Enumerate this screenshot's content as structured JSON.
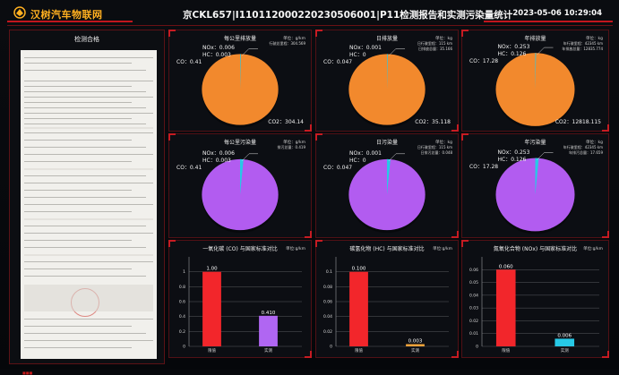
{
  "header": {
    "brand": "汉树汽车物联网",
    "title": "京CKL657|I110112000220230506001|P11检测报告和实测污染量统计",
    "datetime": "2023-05-06 10:29:04"
  },
  "doc_panel": {
    "title": "检测合格"
  },
  "colors": {
    "orange": "#f2892d",
    "purple": "#b25cf0",
    "red": "#f2262b",
    "violet": "#b066f2",
    "cyan": "#27c9e6",
    "frame": "#c71b22",
    "brand": "#ffb020"
  },
  "emission_row": [
    {
      "title": "每公里排放量",
      "unit": "单位：g/km",
      "unit_extra": [
        "行驶总里程：304.569"
      ],
      "labels": {
        "nox": "NOx：0.006",
        "hc": "HC：0.003",
        "co": "CO：0.41",
        "co2": "CO2：304.14"
      }
    },
    {
      "title": "日排放量",
      "unit": "单位：kg",
      "unit_extra": [
        "日行驶里程：115 km",
        "日排放总量：35.166"
      ],
      "labels": {
        "nox": "NOx：0.001",
        "hc": "HC：0",
        "co": "CO：0.047",
        "co2": "CO2：35.118"
      }
    },
    {
      "title": "年排放量",
      "unit": "单位：kg",
      "unit_extra": [
        "年行驶里程：42345 km",
        "年排放总量：12835.774"
      ],
      "labels": {
        "nox": "NOx：0.253",
        "hc": "HC：0.126",
        "co": "CO：17.28",
        "co2": "CO2：12818.115"
      }
    }
  ],
  "pollution_row": [
    {
      "title": "每公里污染量",
      "unit": "单位：g/km",
      "unit_extra": [
        "排污总量：0.419"
      ],
      "labels": {
        "nox": "NOx：0.006",
        "hc": "HC：0.003",
        "co": "CO：0.41"
      }
    },
    {
      "title": "日污染量",
      "unit": "单位：kg",
      "unit_extra": [
        "日行驶里程：115 km",
        "日排污总量：0.048"
      ],
      "labels": {
        "nox": "NOx：0.001",
        "hc": "HC：0",
        "co": "CO：0.047"
      }
    },
    {
      "title": "年污染量",
      "unit": "单位：kg",
      "unit_extra": [
        "年行驶里程：42345 km",
        "年排污总量：17.659"
      ],
      "labels": {
        "nox": "NOx：0.253",
        "hc": "HC：0.126",
        "co": "CO：17.28"
      }
    }
  ],
  "chart_data": [
    {
      "type": "bar",
      "title": "一氧化碳 (CO) 与国家标准对比",
      "unit": "单位:g/km",
      "categories": [
        "限值",
        "实测"
      ],
      "values": [
        1.0,
        0.41
      ],
      "value_labels": [
        "1.00",
        "0.410"
      ],
      "colors": [
        "#f2262b",
        "#b066f2"
      ],
      "ylim": [
        0,
        1.2
      ],
      "yticks": [
        0,
        0.2,
        0.4,
        0.6,
        0.8,
        1
      ],
      "ytick_labels": [
        "0",
        "0.2",
        "0.4",
        "0.6",
        "0.8",
        "1"
      ]
    },
    {
      "type": "bar",
      "title": "碳氢化物 (HC) 与国家标准对比",
      "unit": "单位:g/km",
      "categories": [
        "限值",
        "实测"
      ],
      "values": [
        0.1,
        0.003
      ],
      "value_labels": [
        "0.100",
        "0.003"
      ],
      "colors": [
        "#f2262b",
        "#f2a33a"
      ],
      "ylim": [
        0,
        0.12
      ],
      "yticks": [
        0,
        0.02,
        0.04,
        0.06,
        0.08,
        0.1
      ],
      "ytick_labels": [
        "0",
        "0.02",
        "0.04",
        "0.06",
        "0.08",
        "0.1"
      ]
    },
    {
      "type": "bar",
      "title": "氮氧化合物 (NOx) 与国家标准对比",
      "unit": "单位:g/km",
      "categories": [
        "限值",
        "实测"
      ],
      "values": [
        0.06,
        0.006
      ],
      "value_labels": [
        "0.060",
        "0.006"
      ],
      "colors": [
        "#f2262b",
        "#27c9e6"
      ],
      "ylim": [
        0,
        0.07
      ],
      "yticks": [
        0,
        0.01,
        0.02,
        0.03,
        0.04,
        0.05,
        0.06
      ],
      "ytick_labels": [
        "0",
        "0.01",
        "0.02",
        "0.03",
        "0.04",
        "0.05",
        "0.06"
      ]
    }
  ]
}
